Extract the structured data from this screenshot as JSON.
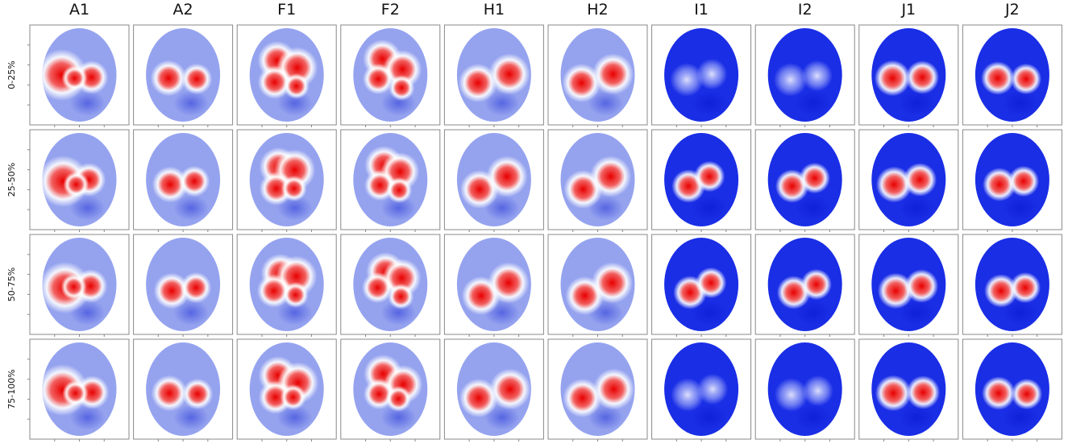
{
  "columns": [
    "A1",
    "A2",
    "F1",
    "F2",
    "H1",
    "H2",
    "I1",
    "I2",
    "J1",
    "J2"
  ],
  "rows": [
    "0-25%",
    "25-50%",
    "50-75%",
    "75-100%"
  ]
}
